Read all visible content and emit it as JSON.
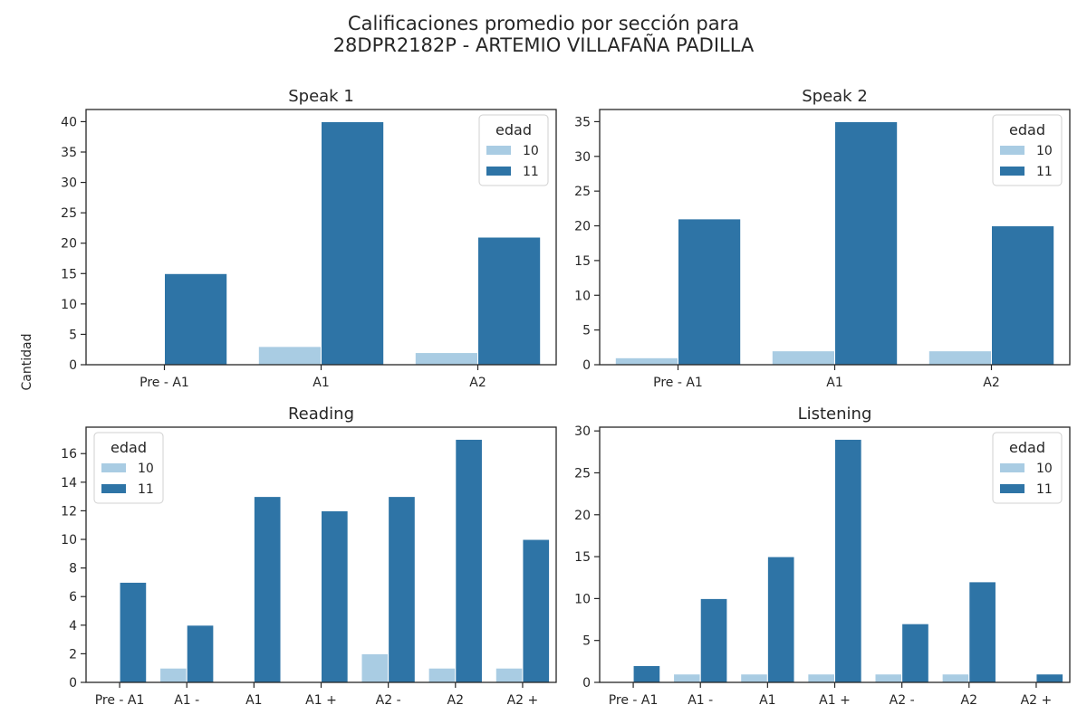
{
  "figure": {
    "suptitle_line1": "Calificaciones promedio por sección para",
    "suptitle_line2": "28DPR2182P - ARTEMIO VILLAFAÑA PADILLA",
    "ylabel": "Cantidad"
  },
  "colors": {
    "age_10": "#a9cce3",
    "age_11": "#2e74a6",
    "axes": "#262626"
  },
  "chart_data": [
    {
      "type": "bar",
      "title": "Speak 1",
      "categories": [
        "Pre - A1",
        "A1",
        "A2"
      ],
      "legend_title": "edad",
      "legend_position": "top-right",
      "ylim": [
        0,
        42
      ],
      "yticks": [
        0,
        5,
        10,
        15,
        20,
        25,
        30,
        35,
        40
      ],
      "series": [
        {
          "name": "10",
          "values": [
            0,
            3,
            2
          ]
        },
        {
          "name": "11",
          "values": [
            15,
            40,
            21
          ]
        }
      ]
    },
    {
      "type": "bar",
      "title": "Speak 2",
      "categories": [
        "Pre - A1",
        "A1",
        "A2"
      ],
      "legend_title": "edad",
      "legend_position": "top-right",
      "ylim": [
        0,
        36.75
      ],
      "yticks": [
        0,
        5,
        10,
        15,
        20,
        25,
        30,
        35
      ],
      "series": [
        {
          "name": "10",
          "values": [
            1,
            2,
            2
          ]
        },
        {
          "name": "11",
          "values": [
            21,
            35,
            20
          ]
        }
      ]
    },
    {
      "type": "bar",
      "title": "Reading",
      "categories": [
        "Pre - A1",
        "A1 -",
        "A1",
        "A1 +",
        "A2 -",
        "A2",
        "A2 +"
      ],
      "legend_title": "edad",
      "legend_position": "top-left",
      "ylim": [
        0,
        17.85
      ],
      "yticks": [
        0,
        2,
        4,
        6,
        8,
        10,
        12,
        14,
        16
      ],
      "series": [
        {
          "name": "10",
          "values": [
            0,
            1,
            0,
            0,
            2,
            1,
            1
          ]
        },
        {
          "name": "11",
          "values": [
            7,
            4,
            13,
            12,
            13,
            17,
            10
          ]
        }
      ]
    },
    {
      "type": "bar",
      "title": "Listening",
      "categories": [
        "Pre - A1",
        "A1 -",
        "A1",
        "A1 +",
        "A2 -",
        "A2",
        "A2 +"
      ],
      "legend_title": "edad",
      "legend_position": "top-right",
      "ylim": [
        0,
        30.45
      ],
      "yticks": [
        0,
        5,
        10,
        15,
        20,
        25,
        30
      ],
      "series": [
        {
          "name": "10",
          "values": [
            0,
            1,
            1,
            1,
            1,
            1,
            0
          ]
        },
        {
          "name": "11",
          "values": [
            2,
            10,
            15,
            29,
            7,
            12,
            1
          ]
        }
      ]
    }
  ]
}
